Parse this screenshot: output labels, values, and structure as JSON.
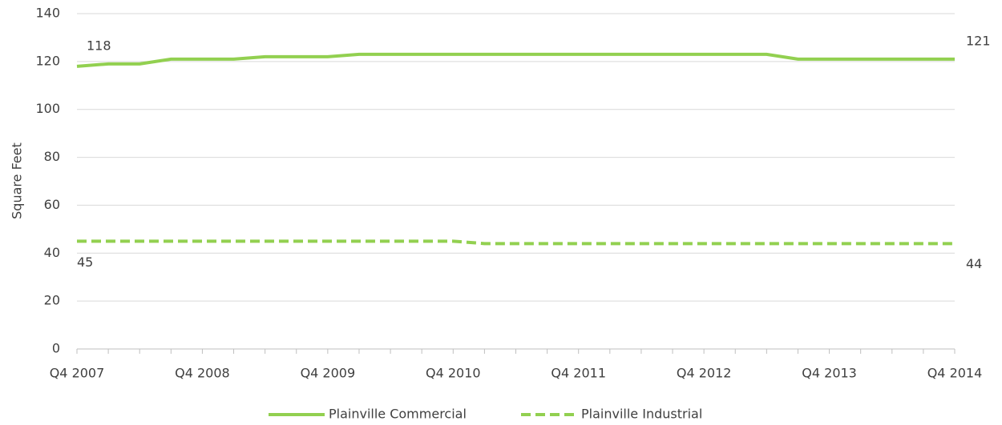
{
  "chart_data": {
    "type": "line",
    "y_label": "Square Feet",
    "categories": [
      "Q4 2007",
      null,
      null,
      null,
      "Q4 2008",
      null,
      null,
      null,
      "Q4 2009",
      null,
      null,
      null,
      "Q4 2010",
      null,
      null,
      null,
      "Q4 2011",
      null,
      null,
      null,
      "Q4 2012",
      null,
      null,
      null,
      "Q4 2013",
      null,
      null,
      null,
      "Q4 2014"
    ],
    "series": [
      {
        "name": "Plainville Commercial",
        "color": "#92d050",
        "dash": "solid",
        "values": [
          118,
          119,
          119,
          121,
          121,
          121,
          122,
          122,
          122,
          123,
          123,
          123,
          123,
          123,
          123,
          123,
          123,
          123,
          123,
          123,
          123,
          123,
          123,
          121,
          121,
          121,
          121,
          121,
          121
        ]
      },
      {
        "name": "Plainville Industrial",
        "color": "#92d050",
        "dash": "dashed",
        "values": [
          45,
          45,
          45,
          45,
          45,
          45,
          45,
          45,
          45,
          45,
          45,
          45,
          45,
          44,
          44,
          44,
          44,
          44,
          44,
          44,
          44,
          44,
          44,
          44,
          44,
          44,
          44,
          44,
          44
        ]
      }
    ],
    "ylim": [
      0,
      140
    ],
    "yticks": [
      0,
      20,
      40,
      60,
      80,
      100,
      120,
      140
    ],
    "grid": true,
    "legend": "bottom"
  }
}
